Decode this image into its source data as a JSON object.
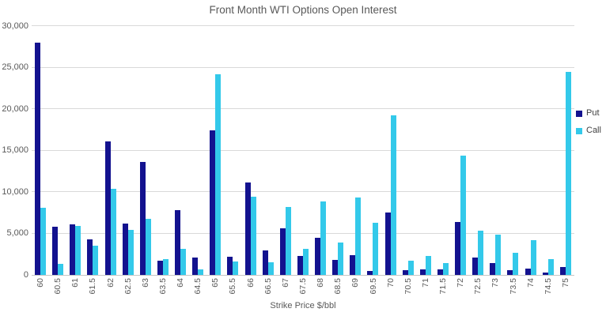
{
  "chart_data": {
    "type": "bar",
    "title": "Front Month WTI Options Open Interest",
    "xlabel": "Strike Price $/bbl",
    "ylabel": "",
    "ylim": [
      0,
      30000
    ],
    "grid": "horizontal",
    "legend_position": "right",
    "y_tick_values": [
      0,
      5000,
      10000,
      15000,
      20000,
      25000,
      30000
    ],
    "y_tick_labels": [
      "0",
      "5,000",
      "10,000",
      "15,000",
      "20,000",
      "25,000",
      "30,000"
    ],
    "categories": [
      "60",
      "60.5",
      "61",
      "61.5",
      "62",
      "62.5",
      "63",
      "63.5",
      "64",
      "64.5",
      "65",
      "65.5",
      "66",
      "66.5",
      "67",
      "67.5",
      "68",
      "68.5",
      "69",
      "69.5",
      "70",
      "70.5",
      "71",
      "71.5",
      "72",
      "72.5",
      "73",
      "73.5",
      "74",
      "74.5",
      "75"
    ],
    "series": [
      {
        "name": "Put",
        "color": "#13128F",
        "values": [
          28000,
          5800,
          6100,
          4300,
          16100,
          6200,
          13600,
          1700,
          7800,
          2100,
          17400,
          2200,
          11100,
          3000,
          5600,
          2300,
          4500,
          1800,
          2400,
          500,
          7500,
          600,
          700,
          700,
          6400,
          2100,
          1400,
          600,
          800,
          300,
          1000
        ]
      },
      {
        "name": "Call",
        "color": "#33C9EA",
        "values": [
          8100,
          1300,
          5900,
          3500,
          10400,
          5400,
          6800,
          1900,
          3100,
          700,
          24200,
          1600,
          9400,
          1500,
          8200,
          3100,
          8900,
          3900,
          9300,
          6300,
          19200,
          1700,
          2300,
          1400,
          14400,
          5300,
          4900,
          2700,
          4200,
          1900,
          24500
        ]
      }
    ],
    "colors": {
      "gridline": "#d9d9d9",
      "axis_line": "#c6c6c6",
      "text": "#595959",
      "legend_text": "#404040",
      "background": "#ffffff"
    }
  }
}
